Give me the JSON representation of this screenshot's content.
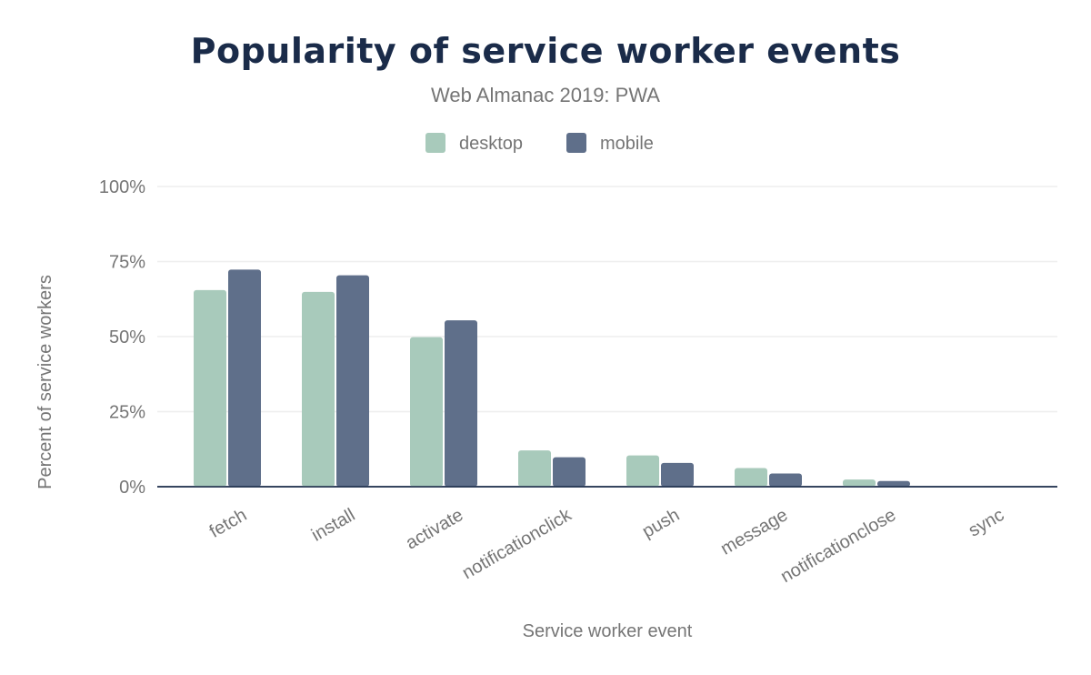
{
  "chart_data": {
    "type": "bar",
    "title": "Popularity of service worker events",
    "subtitle": "Web Almanac 2019: PWA",
    "xlabel": "Service worker event",
    "ylabel": "Percent of service workers",
    "ylim": [
      0,
      100
    ],
    "yticks": [
      "0%",
      "25%",
      "50%",
      "75%",
      "100%"
    ],
    "grid": true,
    "legend_position": "top",
    "categories": [
      "fetch",
      "install",
      "activate",
      "notificationclick",
      "push",
      "message",
      "notificationclose",
      "sync"
    ],
    "series": [
      {
        "name": "desktop",
        "color": "#a8cabb",
        "values": [
          65.5,
          64.9,
          49.8,
          12.1,
          10.4,
          6.2,
          2.4,
          0.2
        ]
      },
      {
        "name": "mobile",
        "color": "#5f6f8a",
        "values": [
          72.3,
          70.4,
          55.4,
          9.8,
          7.9,
          4.4,
          1.9,
          0.1
        ]
      }
    ]
  }
}
